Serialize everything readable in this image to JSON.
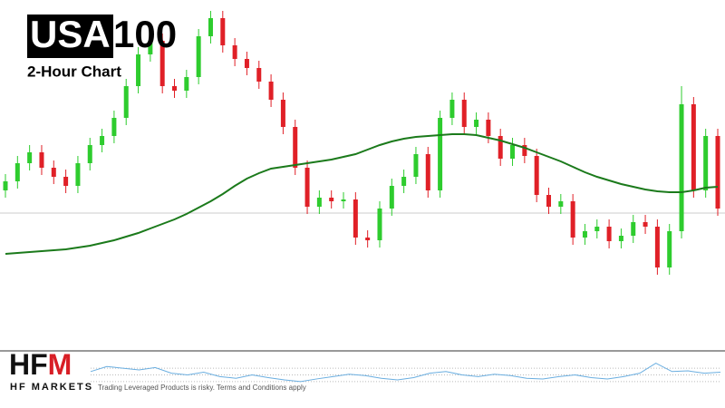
{
  "chart_data": {
    "type": "candlestick",
    "title_highlight": "USA",
    "title_rest": "100",
    "subtitle": "2-Hour Chart",
    "up_color": "#2ecc2e",
    "down_color": "#e02027",
    "ylim": [
      0,
      385
    ],
    "open": [
      175,
      185,
      205,
      217,
      200,
      190,
      180,
      205,
      225,
      235,
      255,
      290,
      325,
      340,
      290,
      285,
      300,
      345,
      365,
      335,
      320,
      310,
      295,
      275,
      245,
      200,
      157,
      167,
      163,
      165,
      123,
      120,
      155,
      180,
      190,
      215,
      175,
      255,
      275,
      245,
      253,
      235,
      210,
      225,
      213,
      170,
      157,
      163,
      123,
      130,
      135,
      119,
      125,
      140,
      135,
      90,
      130,
      270,
      175,
      235
    ],
    "high": [
      193,
      213,
      225,
      225,
      208,
      198,
      213,
      233,
      243,
      263,
      298,
      333,
      348,
      348,
      298,
      308,
      353,
      373,
      373,
      343,
      328,
      318,
      303,
      283,
      253,
      208,
      175,
      175,
      173,
      173,
      131,
      163,
      188,
      198,
      223,
      223,
      263,
      283,
      283,
      261,
      261,
      243,
      233,
      233,
      221,
      178,
      171,
      171,
      138,
      143,
      143,
      133,
      148,
      148,
      143,
      138,
      290,
      278,
      243,
      243
    ],
    "low": [
      167,
      177,
      197,
      192,
      182,
      172,
      172,
      197,
      217,
      227,
      247,
      282,
      317,
      282,
      277,
      277,
      292,
      337,
      327,
      312,
      302,
      287,
      267,
      237,
      192,
      149,
      149,
      155,
      155,
      115,
      112,
      112,
      147,
      172,
      182,
      167,
      167,
      247,
      237,
      237,
      227,
      202,
      202,
      205,
      162,
      149,
      149,
      115,
      115,
      122,
      111,
      111,
      117,
      127,
      82,
      82,
      122,
      167,
      167,
      147
    ],
    "close": [
      185,
      205,
      217,
      200,
      190,
      180,
      205,
      225,
      235,
      255,
      290,
      325,
      340,
      290,
      285,
      300,
      345,
      365,
      335,
      320,
      310,
      295,
      275,
      245,
      200,
      157,
      167,
      163,
      165,
      123,
      120,
      155,
      180,
      190,
      215,
      175,
      255,
      275,
      245,
      253,
      235,
      210,
      225,
      213,
      170,
      157,
      163,
      123,
      130,
      135,
      119,
      125,
      140,
      135,
      90,
      130,
      270,
      175,
      235,
      155
    ],
    "moving_average": {
      "color": "#1b7a1b",
      "values": [
        105,
        106,
        107,
        108,
        109,
        110,
        112,
        114,
        117,
        120,
        124,
        128,
        133,
        138,
        143,
        149,
        156,
        163,
        171,
        180,
        188,
        194,
        199,
        201,
        203,
        205,
        207,
        209,
        212,
        215,
        220,
        225,
        229,
        232,
        234,
        235,
        236,
        237,
        237,
        236,
        233,
        230,
        226,
        222,
        217,
        212,
        207,
        201,
        195,
        190,
        186,
        182,
        179,
        176,
        174,
        173,
        173,
        175,
        178,
        179
      ]
    },
    "reference_line": {
      "value": 150,
      "color": "#cccccc"
    },
    "indicator": {
      "color": "#6aaee0",
      "ylim": [
        0,
        100
      ],
      "yticks": [
        30,
        50,
        70
      ],
      "values": [
        60,
        75,
        70,
        65,
        72,
        55,
        50,
        58,
        45,
        40,
        50,
        42,
        35,
        30,
        38,
        45,
        52,
        48,
        40,
        35,
        42,
        55,
        60,
        50,
        45,
        52,
        48,
        40,
        38,
        45,
        50,
        42,
        38,
        45,
        55,
        85,
        60,
        62,
        55,
        58
      ]
    },
    "logo": [
      "HF",
      "M"
    ],
    "tagline": "HF MARKETS",
    "disclaimer": "Trading Leveraged Products is risky. Terms and Conditions apply"
  }
}
